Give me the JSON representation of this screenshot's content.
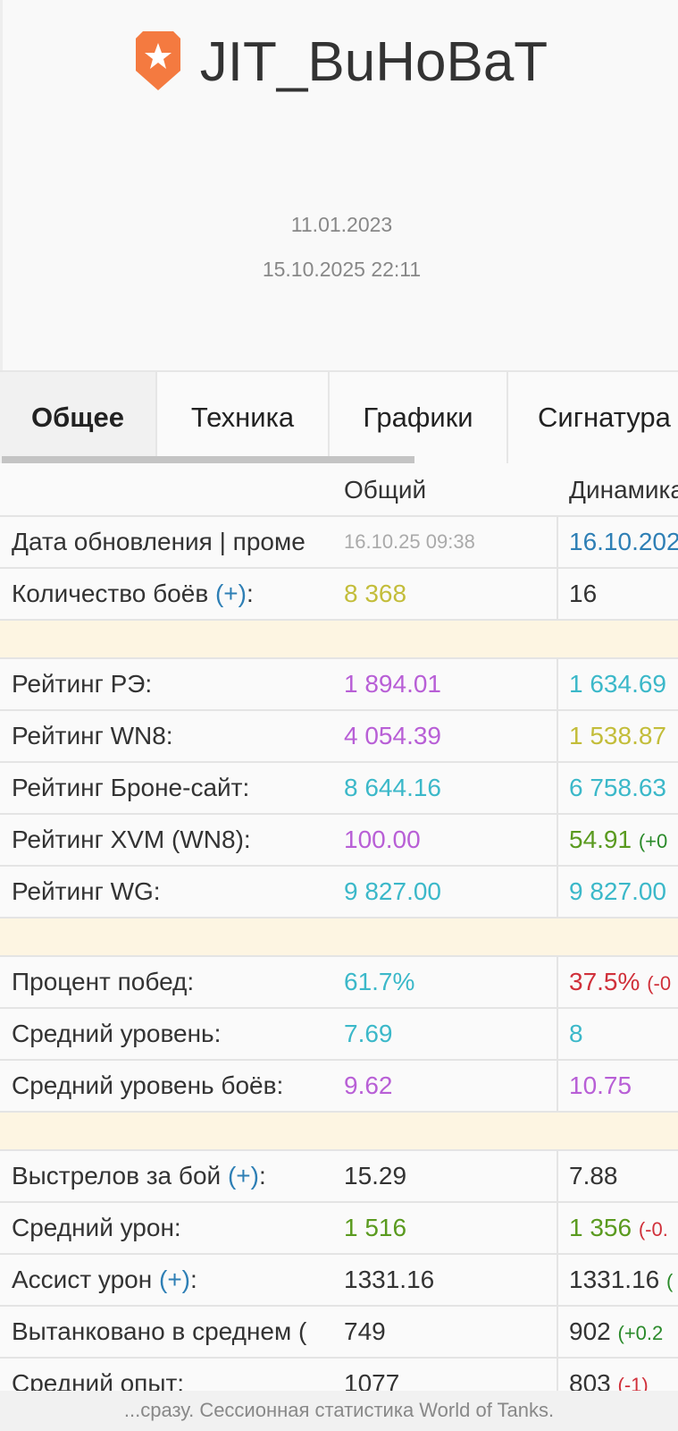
{
  "header": {
    "title": "JIT_BuHoBaT",
    "date_registered": "11.01.2023",
    "last_battle": "15.10.2025 22:11",
    "icon": "clan-shield-star-icon",
    "icon_color": "#f47a40"
  },
  "tabs": [
    {
      "label": "Общее",
      "active": true
    },
    {
      "label": "Техника"
    },
    {
      "label": "Графики"
    },
    {
      "label": "Сигнатура"
    }
  ],
  "table": {
    "columns": [
      "",
      "Общий",
      "Динамика"
    ],
    "rows": [
      {
        "label": "Дата обновления | проме",
        "v1": "16.10.25 09:38",
        "c1": "#aaaaaa",
        "v2": "16.10.202",
        "c2": "#2e7fb5",
        "small1": true
      },
      {
        "label": "Количество боёв ",
        "plus": "(+)",
        "suffix": ":",
        "v1": "8 368",
        "c1": "#c3bd3a",
        "v2": "16",
        "c2": "#333333"
      },
      {
        "sep": true
      },
      {
        "label": "Рейтинг РЭ:",
        "v1": "1 894.01",
        "c1": "#b85fd6",
        "v2": "1 634.69",
        "c2": "#3bb8c9"
      },
      {
        "label": "Рейтинг WN8:",
        "v1": "4 054.39",
        "c1": "#b85fd6",
        "v2": "1 538.87",
        "c2": "#c3bd3a"
      },
      {
        "label": "Рейтинг Броне-сайт:",
        "v1": "8 644.16",
        "c1": "#3bb8c9",
        "v2": "6 758.63",
        "c2": "#3bb8c9"
      },
      {
        "label": "Рейтинг XVM (WN8):",
        "v1": "100.00",
        "c1": "#b85fd6",
        "v2": "54.91",
        "c2": "#5a9a1f",
        "d2": "(+0",
        "dc": "#2a8a2a"
      },
      {
        "label": "Рейтинг WG:",
        "v1": "9 827.00",
        "c1": "#3bb8c9",
        "v2": "9 827.00",
        "c2": "#3bb8c9"
      },
      {
        "sep": true
      },
      {
        "label": "Процент побед:",
        "v1": "61.7%",
        "c1": "#3bb8c9",
        "v2": "37.5%",
        "c2": "#d0303a",
        "d2": "(-0",
        "dc": "#d0303a"
      },
      {
        "label": "Средний уровень:",
        "v1": "7.69",
        "c1": "#3bb8c9",
        "v2": "8",
        "c2": "#3bb8c9"
      },
      {
        "label": "Средний уровень боёв:",
        "v1": "9.62",
        "c1": "#b85fd6",
        "v2": "10.75",
        "c2": "#b85fd6"
      },
      {
        "sep": true
      },
      {
        "label": "Выстрелов за бой ",
        "plus": "(+)",
        "suffix": ":",
        "v1": "15.29",
        "c1": "#333333",
        "v2": "7.88",
        "c2": "#333333"
      },
      {
        "label": "Средний урон:",
        "v1": "1 516",
        "c1": "#5a9a1f",
        "v2": "1 356",
        "c2": "#5a9a1f",
        "d2": "(-0.",
        "dc": "#d0303a"
      },
      {
        "label": "Ассист урон ",
        "plus": "(+)",
        "suffix": ":",
        "v1": "1331.16",
        "c1": "#333333",
        "v2": "1331.16",
        "c2": "#333333",
        "d2": "(",
        "dc": "#2a8a2a"
      },
      {
        "label": "Вытанковано в среднем (",
        "v1": "749",
        "c1": "#333333",
        "v2": "902",
        "c2": "#333333",
        "d2": "(+0.2",
        "dc": "#2a8a2a"
      },
      {
        "label": "Средний опыт:",
        "v1": "1077",
        "c1": "#333333",
        "v2": "803",
        "c2": "#333333",
        "d2": "(-1)",
        "dc": "#d0303a"
      }
    ]
  },
  "footer": {
    "text": "...сразу. Сессионная статистика World of Tanks."
  }
}
